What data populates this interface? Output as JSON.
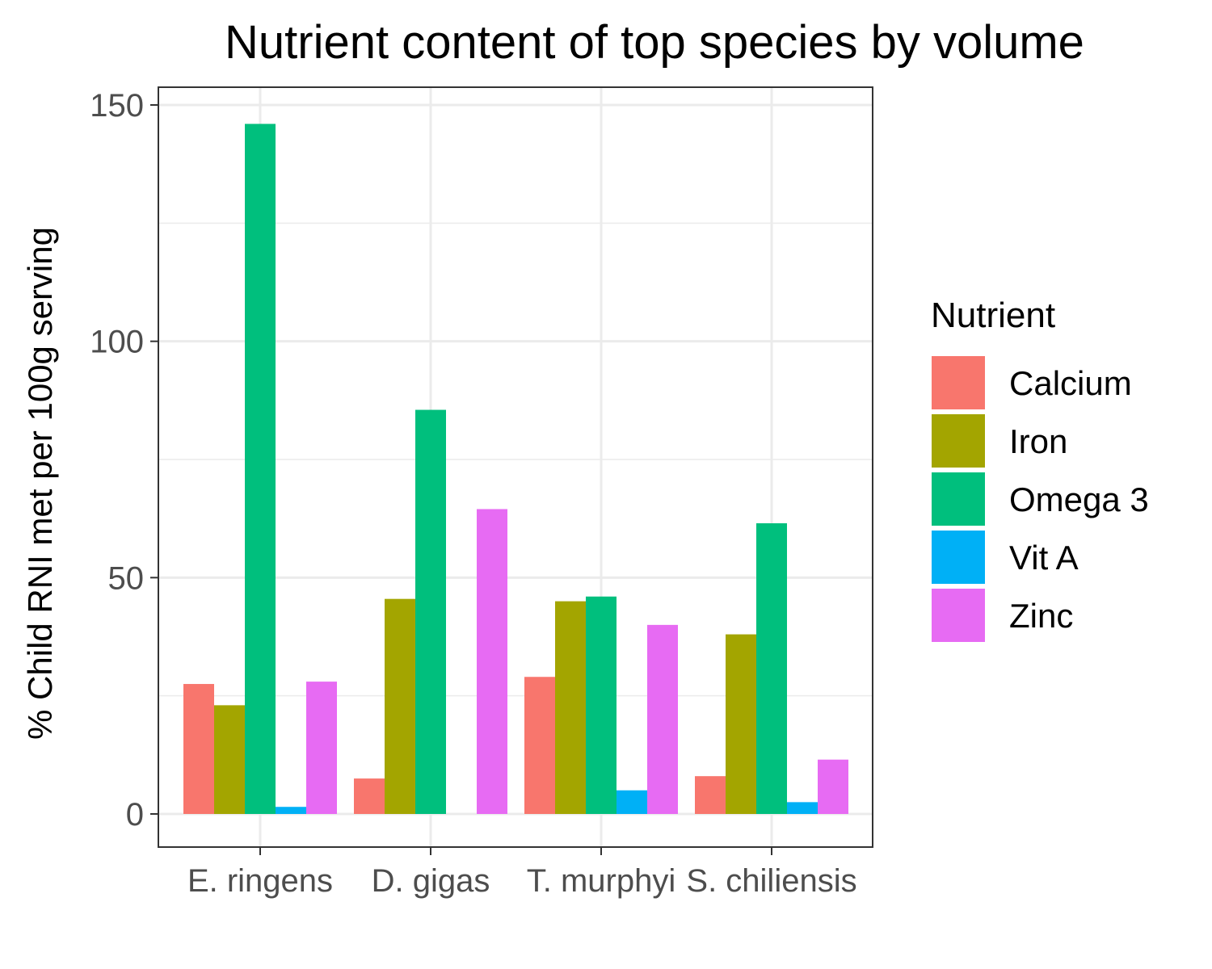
{
  "chart_data": {
    "type": "bar",
    "title": "Nutrient content of top species by volume",
    "xlabel": "",
    "ylabel": "% Child RNI met per 100g serving",
    "ylim": [
      -7,
      150
    ],
    "y_ticks": [
      0,
      50,
      100,
      150
    ],
    "categories": [
      "E. ringens",
      "D. gigas",
      "T. murphyi",
      "S. chiliensis"
    ],
    "legend_title": "Nutrient",
    "legend_position": "right",
    "grid": true,
    "series": [
      {
        "name": "Calcium",
        "color": "#F8766D",
        "values": [
          27.5,
          7.5,
          29,
          8
        ]
      },
      {
        "name": "Iron",
        "color": "#A3A500",
        "values": [
          23,
          45.5,
          45,
          38
        ]
      },
      {
        "name": "Omega 3",
        "color": "#00BF7D",
        "values": [
          146,
          85.5,
          46,
          61.5
        ]
      },
      {
        "name": "Vit A",
        "color": "#00B0F6",
        "values": [
          1.5,
          0,
          5,
          2.5
        ]
      },
      {
        "name": "Zinc",
        "color": "#E76BF3",
        "values": [
          28,
          64.5,
          40,
          11.5
        ]
      }
    ]
  }
}
